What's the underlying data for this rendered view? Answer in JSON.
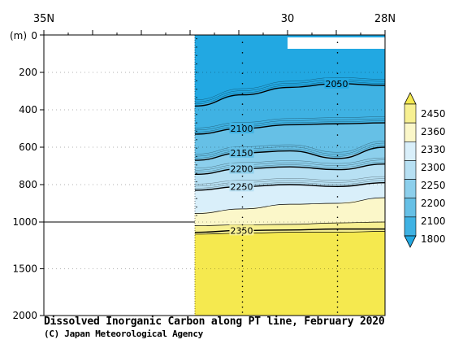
{
  "chart_data": {
    "type": "heatmap",
    "title": "Dissolved Inorganic Carbon along PT line, February 2020",
    "credit": "(C) Japan Meteorological Agency",
    "ylabel": "(m)",
    "x_ticks": [
      {
        "label": "35N",
        "lat": 35
      },
      {
        "label": "30",
        "lat": 30
      },
      {
        "label": "28N",
        "lat": 28
      }
    ],
    "xlim_lat": [
      35,
      28
    ],
    "y_ticks_upper": [
      0,
      200,
      400,
      600,
      800,
      1000
    ],
    "y_ticks_lower": [
      1500,
      2000
    ],
    "ylim": [
      0,
      2000
    ],
    "y_scale_break": 1000,
    "data_start_lat": 31.9,
    "colorbar": {
      "levels": [
        "1800",
        "2100",
        "2200",
        "2250",
        "2300",
        "2330",
        "2360",
        "2450"
      ],
      "colors": [
        "#22a8e2",
        "#3fb2e3",
        "#66c0e6",
        "#8ccfec",
        "#b7e0f3",
        "#d9effa",
        "#fbf7c9",
        "#f7f092",
        "#f5e94f"
      ]
    },
    "contours": [
      {
        "value": 2050,
        "label": "2050",
        "depths": [
          380,
          320,
          280,
          260,
          270
        ]
      },
      {
        "value": 2100,
        "label": "2100",
        "depths": [
          530,
          500,
          480,
          475,
          470
        ]
      },
      {
        "value": 2150,
        "label": "2150",
        "depths": [
          670,
          630,
          620,
          660,
          600
        ]
      },
      {
        "value": 2200,
        "label": "2200",
        "depths": [
          745,
          715,
          705,
          720,
          690
        ]
      },
      {
        "value": 2250,
        "label": "2250",
        "depths": [
          830,
          810,
          800,
          810,
          790
        ]
      },
      {
        "value": 2300,
        "label": "",
        "depths": [
          955,
          930,
          905,
          900,
          870
        ]
      },
      {
        "value": 2330,
        "label": "",
        "depths": [
          1040,
          1030,
          1025,
          1010,
          1000
        ]
      },
      {
        "value": 2360,
        "label": "",
        "depths": [
          1130,
          1120,
          1110,
          1110,
          1100
        ]
      },
      {
        "value": 2350,
        "label": "2350",
        "depths": [
          1110,
          1090,
          1085,
          1075,
          1075
        ]
      }
    ]
  }
}
